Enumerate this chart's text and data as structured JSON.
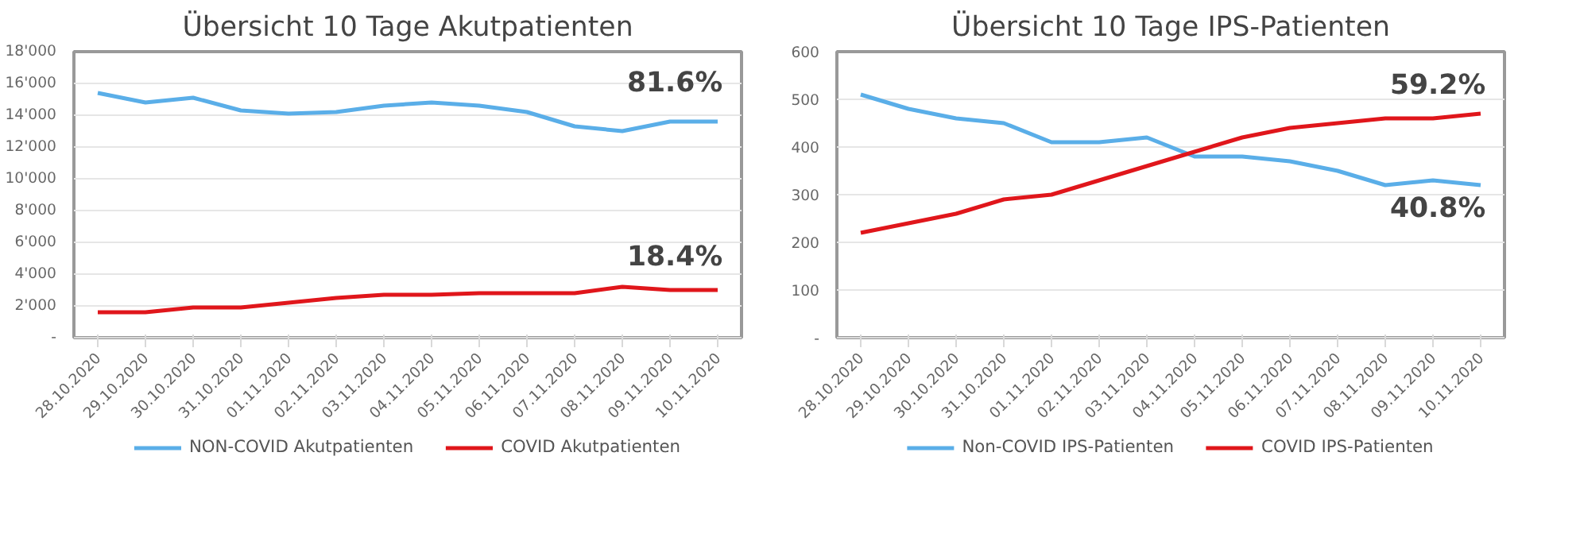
{
  "chart_data": [
    {
      "type": "line",
      "title": "Übersicht 10 Tage Akutpatienten",
      "categories": [
        "28.10.2020",
        "29.10.2020",
        "30.10.2020",
        "31.10.2020",
        "01.11.2020",
        "02.11.2020",
        "03.11.2020",
        "04.11.2020",
        "05.11.2020",
        "06.11.2020",
        "07.11.2020",
        "08.11.2020",
        "09.11.2020",
        "10.11.2020"
      ],
      "series": [
        {
          "name": "NON-COVID Akutpatienten",
          "color": "#5aaee8",
          "values": [
            15400,
            14800,
            15100,
            14300,
            14100,
            14200,
            14600,
            14800,
            14600,
            14200,
            13300,
            13000,
            13600,
            13600
          ]
        },
        {
          "name": "COVID Akutpatienten",
          "color": "#e0161b",
          "values": [
            1600,
            1600,
            1900,
            1900,
            2200,
            2500,
            2700,
            2700,
            2800,
            2800,
            2800,
            3200,
            3000,
            3000
          ]
        }
      ],
      "ylim": [
        0,
        18000
      ],
      "yticks": [
        {
          "value": 0,
          "label": "-"
        },
        {
          "value": 2000,
          "label": "2'000"
        },
        {
          "value": 4000,
          "label": "4'000"
        },
        {
          "value": 6000,
          "label": "6'000"
        },
        {
          "value": 8000,
          "label": "8'000"
        },
        {
          "value": 10000,
          "label": "10'000"
        },
        {
          "value": 12000,
          "label": "12'000"
        },
        {
          "value": 14000,
          "label": "14'000"
        },
        {
          "value": 16000,
          "label": "16'000"
        },
        {
          "value": 18000,
          "label": "18'000"
        }
      ],
      "annotations": [
        "81.6%",
        "18.4%"
      ],
      "grid": "y",
      "legend": "bottom",
      "line_style": "solid",
      "marker": "none"
    },
    {
      "type": "line",
      "title": "Übersicht 10 Tage IPS-Patienten",
      "categories": [
        "28.10.2020",
        "29.10.2020",
        "30.10.2020",
        "31.10.2020",
        "01.11.2020",
        "02.11.2020",
        "03.11.2020",
        "04.11.2020",
        "05.11.2020",
        "06.11.2020",
        "07.11.2020",
        "08.11.2020",
        "09.11.2020",
        "10.11.2020"
      ],
      "series": [
        {
          "name": "Non-COVID IPS-Patienten",
          "color": "#5aaee8",
          "values": [
            510,
            480,
            460,
            450,
            410,
            410,
            420,
            380,
            380,
            370,
            350,
            320,
            330,
            320
          ]
        },
        {
          "name": "COVID IPS-Patienten",
          "color": "#e0161b",
          "values": [
            220,
            240,
            260,
            290,
            300,
            330,
            360,
            390,
            420,
            440,
            450,
            460,
            460,
            470
          ]
        }
      ],
      "ylim": [
        0,
        600
      ],
      "yticks": [
        {
          "value": 0,
          "label": "-"
        },
        100,
        200,
        300,
        400,
        500,
        600
      ],
      "annotations": [
        "59.2%",
        "40.8%"
      ],
      "grid": "y",
      "legend": "bottom",
      "line_style": "solid",
      "marker": "none"
    }
  ]
}
